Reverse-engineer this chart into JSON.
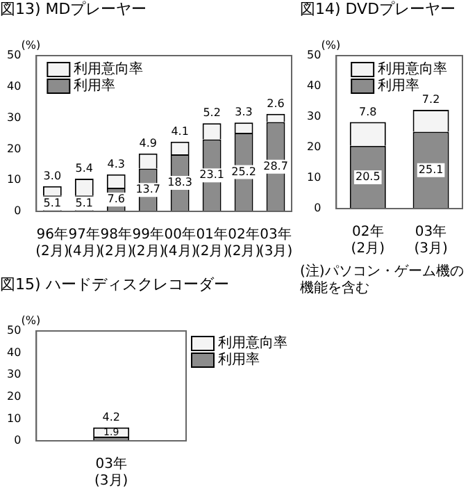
{
  "chart_data": [
    {
      "type": "bar",
      "title": "図13) MDプレーヤー",
      "ylabel": "(%)",
      "stacked": true,
      "legend": "top left",
      "ylim": [
        0,
        50
      ],
      "yticks": [
        0,
        10,
        20,
        30,
        40,
        50
      ],
      "categories": [
        "96年\n(2月)",
        "97年\n(4月)",
        "98年\n(2月)",
        "99年\n(2月)",
        "00年\n(4月)",
        "01年\n(2月)",
        "02年\n(2月)",
        "03年\n(3月)"
      ],
      "series": [
        {
          "name": "利用率",
          "color": "#8c8c8c",
          "values": [
            5.1,
            5.1,
            7.6,
            13.7,
            18.3,
            23.1,
            25.2,
            28.7
          ],
          "value_labels": [
            "5.1",
            "5.1",
            "7.6",
            "13.7",
            "18.3",
            "23.1",
            "25.2",
            "28.7"
          ]
        },
        {
          "name": "利用意向率",
          "color": "#f4f4f4",
          "values": [
            3.0,
            5.4,
            4.3,
            4.9,
            4.1,
            5.2,
            3.3,
            2.6
          ],
          "value_labels": [
            "3.0",
            "5.4",
            "4.3",
            "4.9",
            "4.1",
            "5.2",
            "3.3",
            "2.6"
          ]
        }
      ]
    },
    {
      "type": "bar",
      "title": "図14) DVDプレーヤー",
      "ylabel": "(%)",
      "stacked": true,
      "legend": "top",
      "data_labels": true,
      "ylim": [
        0,
        50
      ],
      "yticks": [
        0,
        10,
        20,
        30,
        40,
        50
      ],
      "categories": [
        "02年\n(2月)",
        "03年\n(3月)"
      ],
      "annotations": [
        "(注)パソコン・ゲーム機の機能を含む"
      ],
      "series": [
        {
          "name": "利用率",
          "color": "#8c8c8c",
          "values": [
            20.5,
            25.1
          ]
        },
        {
          "name": "利用意向率",
          "color": "#f4f4f4",
          "values": [
            7.8,
            7.2
          ]
        }
      ]
    },
    {
      "type": "bar",
      "title": "図15) ハードディスクレコーダー",
      "ylabel": "(%)",
      "stacked": true,
      "legend": "right",
      "data_labels": true,
      "ylim": [
        0,
        50
      ],
      "yticks": [
        0,
        10,
        20,
        30,
        40,
        50
      ],
      "categories": [
        "03年\n(3月)"
      ],
      "series": [
        {
          "name": "利用率",
          "color": "#8c8c8c",
          "values": [
            1.9
          ]
        },
        {
          "name": "利用意向率",
          "color": "#f4f4f4",
          "values": [
            4.2
          ]
        }
      ]
    }
  ]
}
